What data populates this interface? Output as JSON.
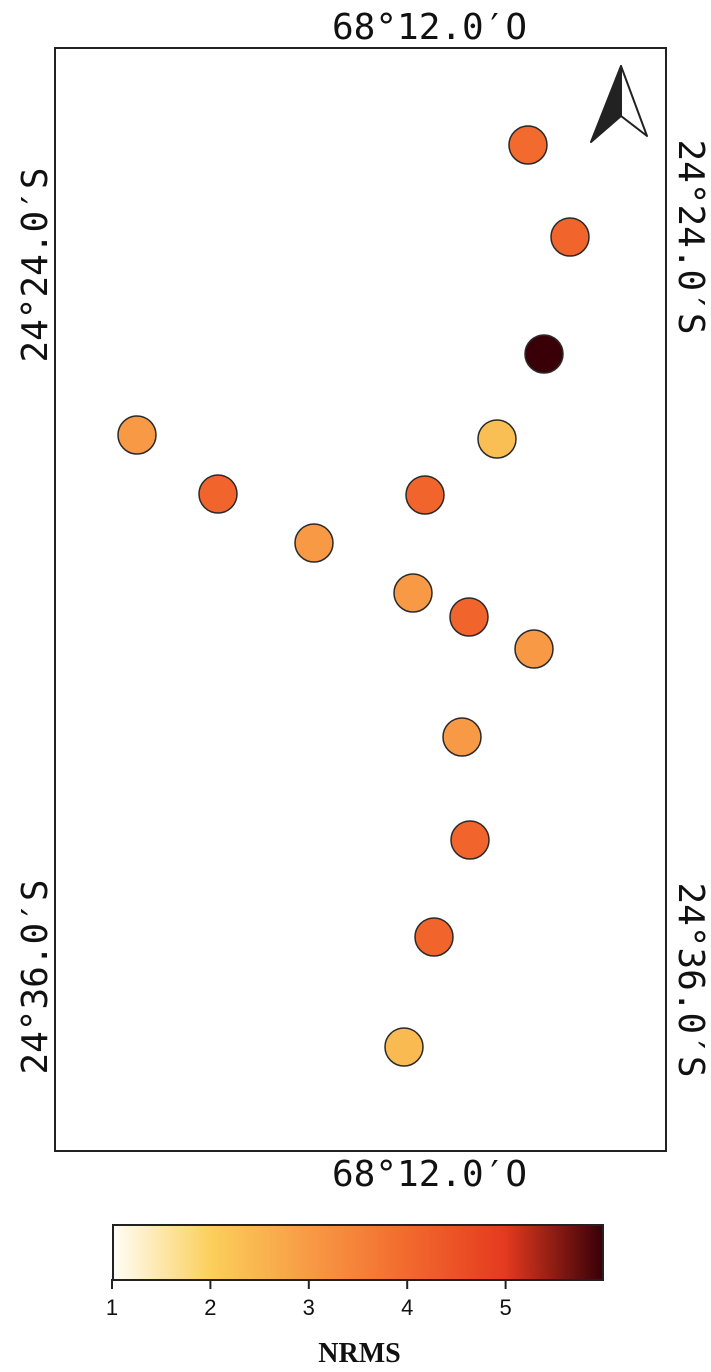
{
  "map": {
    "coord_top": "68°12.0′O",
    "coord_bottom": "68°12.0′O",
    "coord_left_top": "24°24.0′S",
    "coord_left_bottom": "24°36.0′S",
    "coord_right_top": "24°24.0′S",
    "coord_right_bottom": "24°36.0′S",
    "north_arrow_icon": "north-arrow-icon"
  },
  "legend": {
    "title": "NRMS",
    "ticks": [
      "1",
      "2",
      "3",
      "4",
      "5"
    ],
    "range": [
      1,
      6
    ],
    "colors": [
      "#fffdf5",
      "#fbcf5a",
      "#f89a45",
      "#f26a2d",
      "#e53a1f",
      "#3a0008"
    ]
  },
  "stations": [
    {
      "id": "s1",
      "nrms": 4.0
    },
    {
      "id": "s2",
      "nrms": 4.1
    },
    {
      "id": "s3",
      "nrms": 6.0
    },
    {
      "id": "s4",
      "nrms": 3.0
    },
    {
      "id": "s5",
      "nrms": 2.3
    },
    {
      "id": "s6",
      "nrms": 4.1
    },
    {
      "id": "s7",
      "nrms": 4.1
    },
    {
      "id": "s8",
      "nrms": 3.0
    },
    {
      "id": "s9",
      "nrms": 3.0
    },
    {
      "id": "s10",
      "nrms": 4.1
    },
    {
      "id": "s11",
      "nrms": 3.0
    },
    {
      "id": "s12",
      "nrms": 3.0
    },
    {
      "id": "s13",
      "nrms": 4.1
    },
    {
      "id": "s14",
      "nrms": 4.1
    },
    {
      "id": "s15",
      "nrms": 2.4
    }
  ]
}
